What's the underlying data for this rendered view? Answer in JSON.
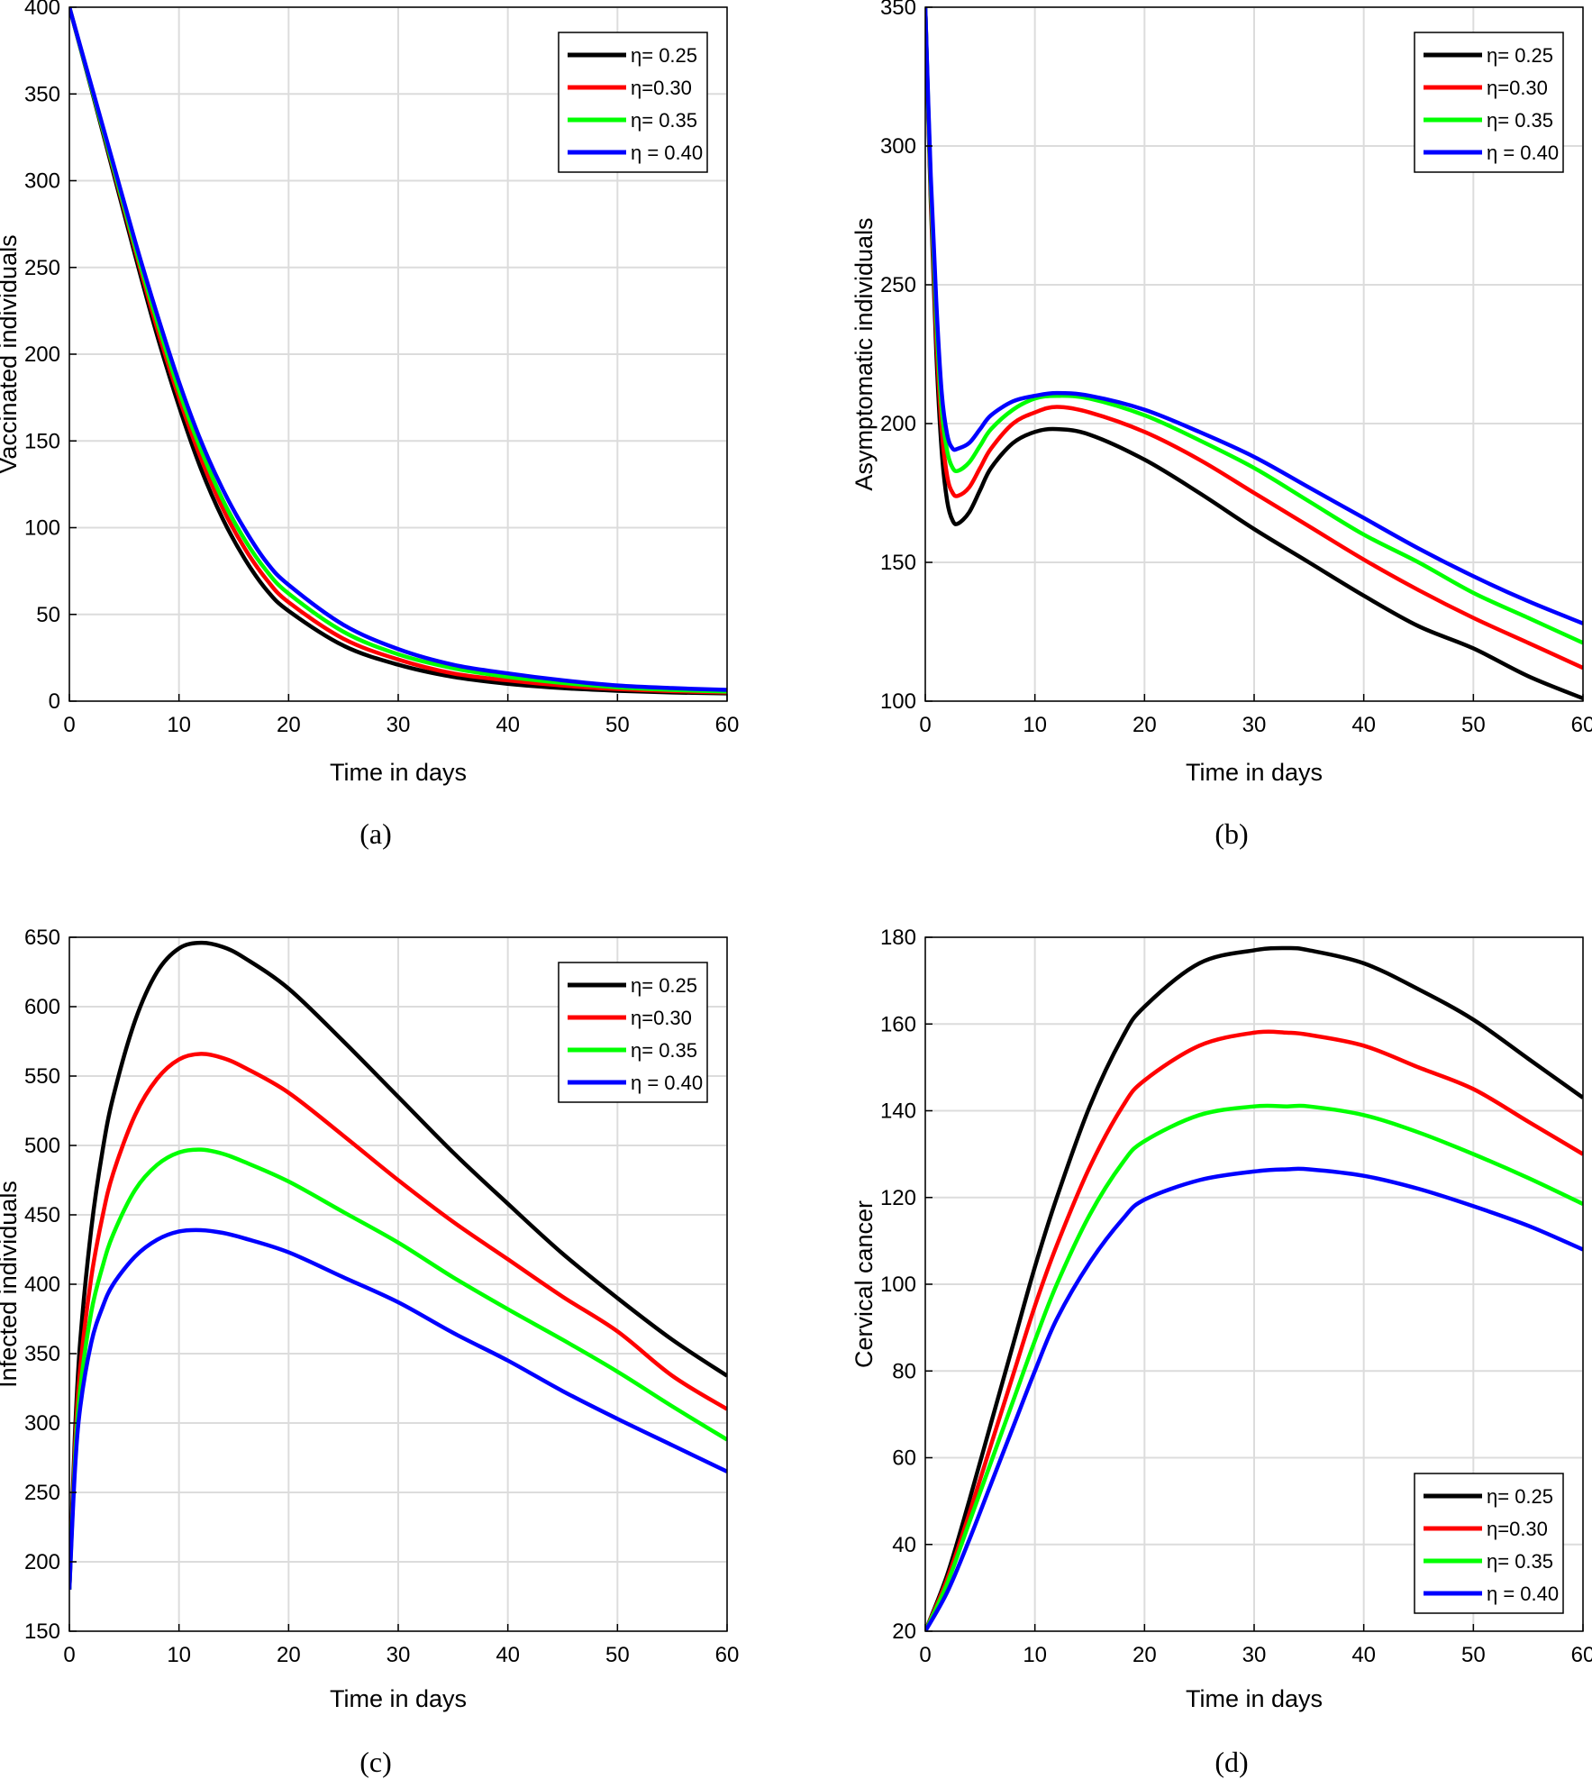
{
  "colors": {
    "series": [
      "#000000",
      "#ff0000",
      "#00ff00",
      "#0000ff"
    ],
    "grid": "#dcdcdc",
    "axis": "#000000"
  },
  "chart_data": [
    {
      "id": "a",
      "type": "line",
      "caption": "(a)",
      "xlabel": "Time in days",
      "ylabel": "Vaccinated individuals",
      "xlim": [
        0,
        60
      ],
      "ylim": [
        0,
        400
      ],
      "xticks": [
        0,
        10,
        20,
        30,
        40,
        50,
        60
      ],
      "yticks": [
        0,
        50,
        100,
        150,
        200,
        250,
        300,
        350,
        400
      ],
      "grid": true,
      "legend_position": "top-right",
      "x": [
        0,
        2,
        4,
        6,
        8,
        10,
        12,
        14,
        16,
        18,
        20,
        25,
        30,
        35,
        40,
        45,
        50,
        55,
        60
      ],
      "series": [
        {
          "name": "η= 0.25",
          "values": [
            400,
            353,
            305,
            257,
            211,
            170,
            134,
            105,
            82,
            64,
            52,
            32,
            21,
            14,
            10,
            7.5,
            6,
            5,
            4.5
          ]
        },
        {
          "name": "η=0.30",
          "values": [
            400,
            354,
            307,
            260,
            215,
            175,
            140,
            111,
            88,
            70,
            57,
            36,
            24,
            16,
            12,
            9,
            7,
            5.8,
            5
          ]
        },
        {
          "name": "η= 0.35",
          "values": [
            400,
            354,
            308,
            262,
            219,
            179,
            145,
            116,
            93,
            75,
            62,
            40,
            27,
            19,
            14,
            10.5,
            8,
            6.5,
            5.5
          ]
        },
        {
          "name": "η = 0.40",
          "values": [
            400,
            355,
            310,
            265,
            223,
            184,
            150,
            122,
            99,
            80,
            67,
            44,
            30,
            21,
            16,
            12,
            9,
            7.5,
            6.5
          ]
        }
      ]
    },
    {
      "id": "b",
      "type": "line",
      "caption": "(b)",
      "xlabel": "Time in days",
      "ylabel": "Asymptomatic individuals",
      "xlim": [
        0,
        60
      ],
      "ylim": [
        100,
        350
      ],
      "xticks": [
        0,
        10,
        20,
        30,
        40,
        50,
        60
      ],
      "yticks": [
        100,
        150,
        200,
        250,
        300,
        350
      ],
      "grid": true,
      "legend_position": "top-right",
      "x": [
        0,
        0.5,
        1,
        1.5,
        2,
        2.5,
        3,
        4,
        5,
        6,
        8,
        10,
        12,
        15,
        20,
        25,
        30,
        35,
        40,
        45,
        50,
        55,
        60
      ],
      "series": [
        {
          "name": "η= 0.25",
          "values": [
            350,
            280,
            226,
            190,
            172,
            165,
            164,
            168,
            176,
            184,
            193,
            197,
            198,
            196,
            187,
            175,
            162,
            150,
            138,
            127,
            119,
            109,
            101
          ]
        },
        {
          "name": "η=0.30",
          "values": [
            350,
            283,
            232,
            198,
            181,
            175,
            174,
            177,
            184,
            191,
            200,
            204,
            206,
            204,
            197,
            187,
            175,
            163,
            151,
            140,
            130,
            121,
            112
          ]
        },
        {
          "name": "η= 0.35",
          "values": [
            350,
            286,
            238,
            205,
            190,
            184,
            183,
            186,
            192,
            198,
            205,
            209,
            210,
            209,
            203,
            194,
            184,
            172,
            160,
            150,
            139,
            130,
            121
          ]
        },
        {
          "name": "η = 0.40",
          "values": [
            350,
            289,
            244,
            211,
            196,
            191,
            191,
            193,
            198,
            203,
            208,
            210,
            211,
            210,
            205,
            197,
            188,
            177,
            166,
            155,
            145,
            136,
            128
          ]
        }
      ]
    },
    {
      "id": "c",
      "type": "line",
      "caption": "(c)",
      "xlabel": "Time in days",
      "ylabel": "Infected individuals",
      "xlim": [
        0,
        60
      ],
      "ylim": [
        150,
        650
      ],
      "xticks": [
        0,
        10,
        20,
        30,
        40,
        50,
        60
      ],
      "yticks": [
        150,
        200,
        250,
        300,
        350,
        400,
        450,
        500,
        550,
        600,
        650
      ],
      "grid": true,
      "legend_position": "top-right",
      "x": [
        0,
        0.5,
        1,
        2,
        3,
        4,
        6,
        8,
        10,
        12,
        14,
        16,
        20,
        25,
        30,
        35,
        40,
        45,
        50,
        55,
        60
      ],
      "series": [
        {
          "name": "η= 0.25",
          "values": [
            180,
            290,
            360,
            440,
            495,
            535,
            590,
            625,
            642,
            646,
            643,
            635,
            613,
            575,
            535,
            495,
            458,
            422,
            390,
            360,
            334
          ]
        },
        {
          "name": "η=0.30",
          "values": [
            180,
            280,
            340,
            405,
            448,
            480,
            522,
            548,
            562,
            566,
            563,
            556,
            538,
            507,
            475,
            445,
            418,
            391,
            366,
            334,
            310
          ]
        },
        {
          "name": "η= 0.35",
          "values": [
            180,
            272,
            325,
            380,
            412,
            436,
            468,
            486,
            495,
            497,
            494,
            488,
            474,
            452,
            430,
            405,
            382,
            360,
            337,
            312,
            288
          ]
        },
        {
          "name": "η = 0.40",
          "values": [
            180,
            265,
            312,
            358,
            383,
            400,
            420,
            432,
            438,
            439,
            437,
            433,
            423,
            405,
            387,
            365,
            345,
            323,
            303,
            284,
            265
          ]
        }
      ]
    },
    {
      "id": "d",
      "type": "line",
      "caption": "(d)",
      "xlabel": "Time in days",
      "ylabel": "Cervical cancer",
      "xlim": [
        0,
        60
      ],
      "ylim": [
        20,
        180
      ],
      "xticks": [
        0,
        10,
        20,
        30,
        40,
        50,
        60
      ],
      "yticks": [
        20,
        40,
        60,
        80,
        100,
        120,
        140,
        160,
        180
      ],
      "grid": true,
      "legend_position": "bottom-right",
      "x": [
        0,
        2,
        4,
        6,
        8,
        10,
        12,
        15,
        18,
        20,
        25,
        30,
        33,
        35,
        40,
        45,
        50,
        55,
        60
      ],
      "series": [
        {
          "name": "η= 0.25",
          "values": [
            20,
            33,
            50,
            68,
            86,
            104,
            120,
            141,
            157,
            164,
            174,
            177,
            177.5,
            177,
            174,
            168,
            161,
            152,
            143
          ]
        },
        {
          "name": "η=0.30",
          "values": [
            20,
            32,
            47,
            63,
            79,
            95,
            109,
            127,
            141,
            147,
            155,
            158,
            158,
            157.5,
            155,
            150,
            145,
            137.5,
            130
          ]
        },
        {
          "name": "η= 0.35",
          "values": [
            20,
            31,
            45,
            59,
            73,
            87,
            100,
            116,
            128,
            133,
            139,
            141,
            141,
            141,
            139,
            135,
            130,
            124.5,
            118.5
          ]
        },
        {
          "name": "η = 0.40",
          "values": [
            20,
            29,
            41,
            54,
            67,
            80,
            92,
            105,
            115,
            119.5,
            124,
            126,
            126.5,
            126.5,
            125,
            122,
            118,
            113.5,
            108
          ]
        }
      ]
    }
  ]
}
